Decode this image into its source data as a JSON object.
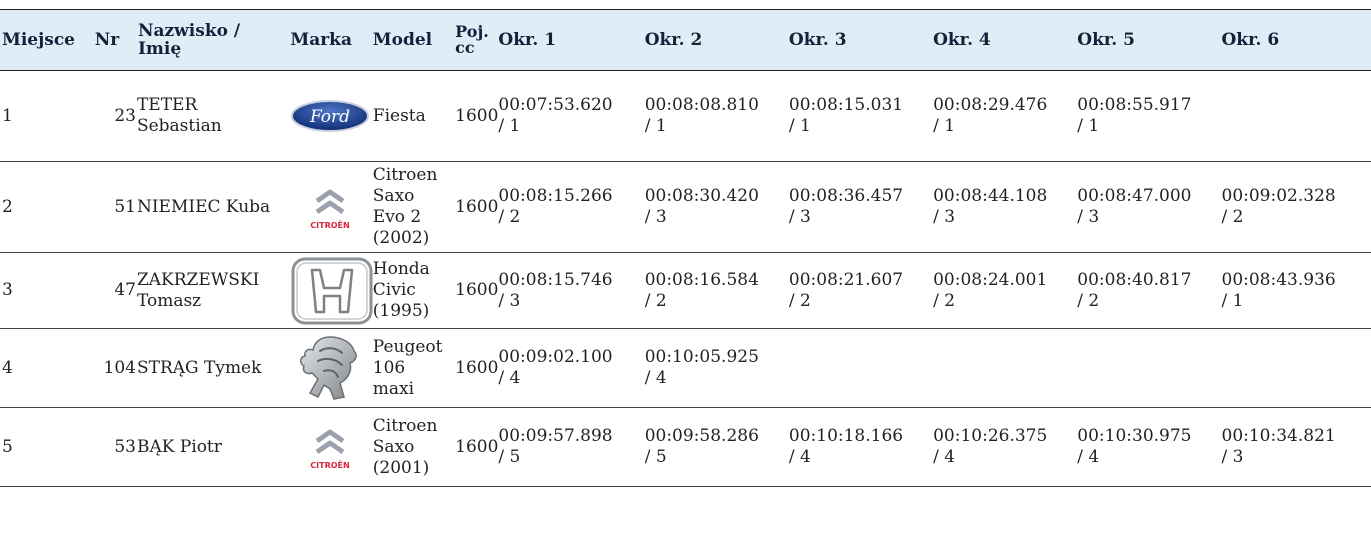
{
  "headers": {
    "place": "Miejsce",
    "nr": "Nr",
    "name": "Nazwisko / Imię",
    "brand": "Marka",
    "model": "Model",
    "cc": "Poj. cc",
    "laps": [
      "Okr. 1",
      "Okr. 2",
      "Okr. 3",
      "Okr. 4",
      "Okr. 5",
      "Okr. 6"
    ]
  },
  "rows": [
    {
      "place": "1",
      "nr": "23",
      "name": "TETER Sebastian",
      "brand": "ford-logo",
      "model": "Fiesta",
      "cc": "1600",
      "laps": [
        {
          "time": "00:07:53.620",
          "pos": "/ 1"
        },
        {
          "time": "00:08:08.810",
          "pos": "/ 1"
        },
        {
          "time": "00:08:15.031",
          "pos": "/ 1"
        },
        {
          "time": "00:08:29.476",
          "pos": "/ 1"
        },
        {
          "time": "00:08:55.917",
          "pos": "/ 1"
        },
        {
          "time": "",
          "pos": ""
        }
      ]
    },
    {
      "place": "2",
      "nr": "51",
      "name": "NIEMIEC Kuba",
      "brand": "citroen-logo",
      "model": "Citroen Saxo Evo 2 (2002)",
      "cc": "1600",
      "laps": [
        {
          "time": "00:08:15.266",
          "pos": "/ 2"
        },
        {
          "time": "00:08:30.420",
          "pos": "/ 3"
        },
        {
          "time": "00:08:36.457",
          "pos": "/ 3"
        },
        {
          "time": "00:08:44.108",
          "pos": "/ 3"
        },
        {
          "time": "00:08:47.000",
          "pos": "/ 3"
        },
        {
          "time": "00:09:02.328",
          "pos": "/ 2"
        }
      ]
    },
    {
      "place": "3",
      "nr": "47",
      "name": "ZAKRZEWSKI Tomasz",
      "brand": "honda-logo",
      "model": "Honda Civic (1995)",
      "cc": "1600",
      "laps": [
        {
          "time": "00:08:15.746",
          "pos": "/ 3"
        },
        {
          "time": "00:08:16.584",
          "pos": "/ 2"
        },
        {
          "time": "00:08:21.607",
          "pos": "/ 2"
        },
        {
          "time": "00:08:24.001",
          "pos": "/ 2"
        },
        {
          "time": "00:08:40.817",
          "pos": "/ 2"
        },
        {
          "time": "00:08:43.936",
          "pos": "/ 1"
        }
      ]
    },
    {
      "place": "4",
      "nr": "104",
      "name": "STRĄG Tymek",
      "brand": "peugeot-logo",
      "model": "Peugeot 106 maxi",
      "cc": "1600",
      "laps": [
        {
          "time": "00:09:02.100",
          "pos": "/ 4"
        },
        {
          "time": "00:10:05.925",
          "pos": "/ 4"
        },
        {
          "time": "",
          "pos": ""
        },
        {
          "time": "",
          "pos": ""
        },
        {
          "time": "",
          "pos": ""
        },
        {
          "time": "",
          "pos": ""
        }
      ]
    },
    {
      "place": "5",
      "nr": "53",
      "name": "BĄK Piotr",
      "brand": "citroen-logo",
      "model": "Citroen Saxo (2001)",
      "cc": "1600",
      "laps": [
        {
          "time": "00:09:57.898",
          "pos": "/ 5"
        },
        {
          "time": "00:09:58.286",
          "pos": "/ 5"
        },
        {
          "time": "00:10:18.166",
          "pos": "/ 4"
        },
        {
          "time": "00:10:26.375",
          "pos": "/ 4"
        },
        {
          "time": "00:10:30.975",
          "pos": "/ 4"
        },
        {
          "time": "00:10:34.821",
          "pos": "/ 3"
        }
      ]
    }
  ],
  "brand_text": {
    "ford": "Ford",
    "citroen": "CITROËN"
  },
  "colors": {
    "header_bg": "#dfeef6",
    "ford_blue": "#1c3f94",
    "citroen_red": "#d7263d"
  }
}
